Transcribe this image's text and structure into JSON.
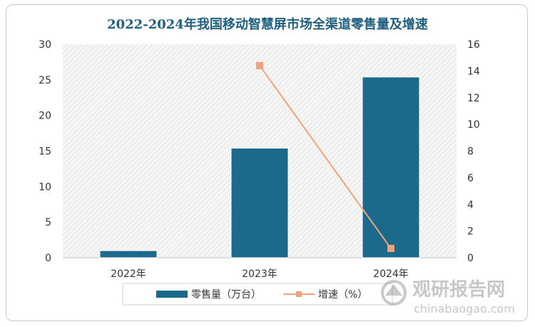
{
  "chart_data": {
    "type": "bar",
    "title": "2022-2024年我国移动智慧屏市场全渠道零售量及增速",
    "categories": [
      "2022年",
      "2023年",
      "2024年"
    ],
    "series": [
      {
        "name": "零售量（万台）",
        "kind": "bar",
        "axis": "left",
        "color": "#1b6a8c",
        "values": [
          1,
          15.4,
          25.4
        ]
      },
      {
        "name": "增速（%）",
        "kind": "line",
        "axis": "right",
        "color": "#f0a27a",
        "values": [
          null,
          14.4,
          0.7
        ]
      }
    ],
    "y_left": {
      "ylim": [
        0,
        30
      ],
      "ticks": [
        "0",
        "5",
        "10",
        "15",
        "20",
        "25",
        "30"
      ]
    },
    "y_right": {
      "ylim": [
        0,
        16
      ],
      "ticks": [
        "0",
        "2",
        "4",
        "6",
        "8",
        "10",
        "12",
        "14",
        "16"
      ]
    },
    "legend_position": "bottom",
    "plot_background": "diagonal-hatch"
  },
  "watermark": {
    "name": "观研报告网",
    "url": "chinabaogao.com"
  }
}
